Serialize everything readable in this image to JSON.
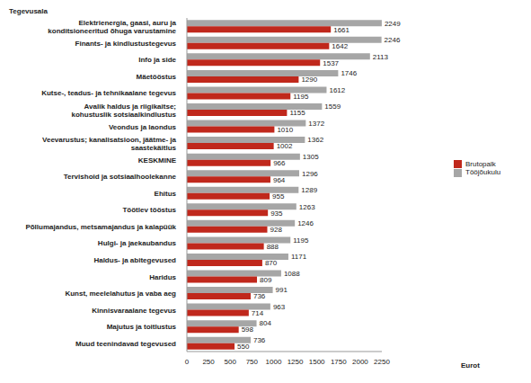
{
  "chart_data": {
    "type": "bar",
    "orientation": "horizontal",
    "ylabel": "Tegevusala",
    "xlabel": "Eurot",
    "categories": [
      "Elektrienergia, gaasi, auru ja konditsioneeritud õhuga varustamine",
      "Finants- ja kindlustustegevus",
      "Info ja side",
      "Mäetööstus",
      "Kutse-, teadus- ja tehnikaalane tegevus",
      "Avalik haldus ja riigikaitse; kohustuslik sotsiaalkindlustus",
      "Veondus ja laondus",
      "Veevarustus; kanalisatsioon, jäätme- ja saastekäitlus",
      "KESKMINE",
      "Tervishoid ja sotsiaalhoolekanne",
      "Ehitus",
      "Töötlev tööstus",
      "Põllumajandus, metsamajandus ja kalapüük",
      "Hulgi- ja jaekaubandus",
      "Haldus- ja abitegevused",
      "Haridus",
      "Kunst, meelelahutus ja vaba aeg",
      "Kinnisvaraalane tegevus",
      "Majutus ja toitlustus",
      "Muud teenindavad tegevused"
    ],
    "series": [
      {
        "name": "Tööjõukulu",
        "color": "#a6a6a6",
        "values": [
          2249,
          2246,
          2113,
          1746,
          1612,
          1559,
          1372,
          1362,
          1305,
          1296,
          1289,
          1263,
          1246,
          1195,
          1171,
          1088,
          991,
          963,
          804,
          736
        ]
      },
      {
        "name": "Brutopalk",
        "color": "#c0281c",
        "values": [
          1661,
          1642,
          1537,
          1290,
          1195,
          1155,
          1010,
          1002,
          966,
          964,
          955,
          935,
          928,
          888,
          870,
          809,
          736,
          714,
          598,
          550
        ]
      }
    ],
    "xlim": [
      0,
      2250
    ],
    "xticks": [
      0,
      250,
      500,
      750,
      1000,
      1250,
      1500,
      1750,
      2000,
      2250
    ],
    "data_labels": true,
    "grid": false,
    "legend": "right"
  }
}
